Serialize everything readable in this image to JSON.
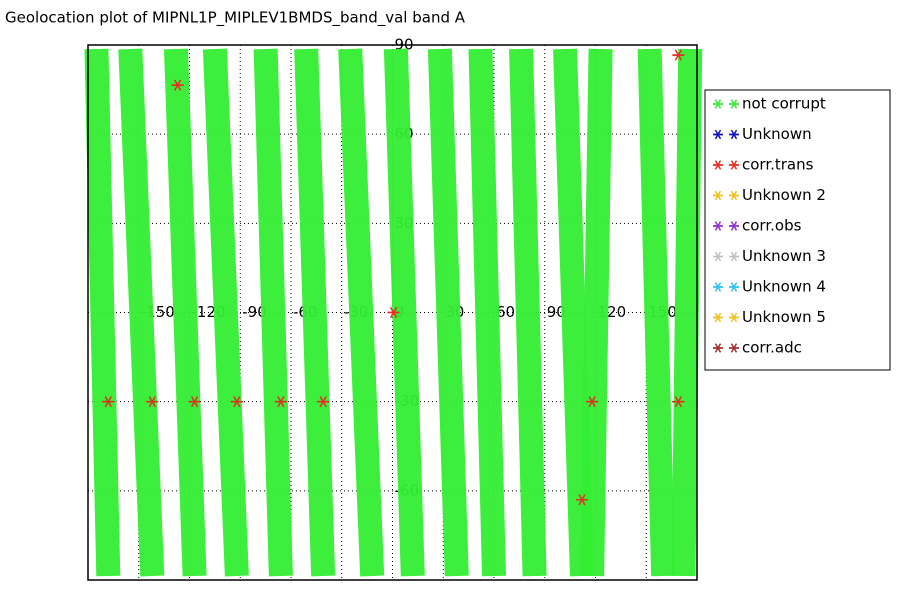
{
  "chart_data": {
    "type": "geolocation",
    "title": "Geolocation plot of MIPNL1P_MIPLEV1BMDS_band_val band A",
    "xlim": [
      -180,
      180
    ],
    "ylim": [
      -90,
      90
    ],
    "xticks": [
      -150,
      -120,
      -90,
      -60,
      -30,
      0,
      30,
      60,
      90,
      120,
      150
    ],
    "yticks": [
      -60,
      -30,
      0,
      30,
      60,
      90
    ],
    "grid": true,
    "series": [
      {
        "name": "not corrupt",
        "color": "#33ee33",
        "tracks": [
          [
            -175,
            -168
          ],
          [
            -155,
            -142
          ],
          [
            -128,
            -117
          ],
          [
            -105,
            -92
          ],
          [
            -75,
            -66
          ],
          [
            -51,
            -41
          ],
          [
            -25,
            -12
          ],
          [
            2,
            12
          ],
          [
            28,
            38
          ],
          [
            52,
            60
          ],
          [
            76,
            84
          ],
          [
            102,
            112
          ],
          [
            123,
            118
          ],
          [
            152,
            160
          ],
          [
            176,
            172
          ]
        ]
      },
      {
        "name": "Unknown",
        "color": "#1010c0",
        "lon": [],
        "lat": []
      },
      {
        "name": "corr.trans",
        "color": "#e03020",
        "lon": [
          -168,
          -142,
          -117,
          -92,
          -66,
          -41,
          118,
          169,
          -127,
          0.6,
          169,
          112
        ],
        "lat": [
          -30,
          -30,
          -30,
          -30,
          -30,
          -30,
          -30,
          -30,
          76.5,
          0,
          86.6,
          -63
        ]
      },
      {
        "name": "Unknown 2",
        "color": "#f0c020",
        "lon": [],
        "lat": []
      },
      {
        "name": "corr.obs",
        "color": "#9030d0",
        "lon": [],
        "lat": []
      },
      {
        "name": "Unknown 3",
        "color": "#c0c0c0",
        "lon": [],
        "lat": []
      },
      {
        "name": "Unknown 4",
        "color": "#30c0f0",
        "lon": [],
        "lat": []
      },
      {
        "name": "Unknown 5",
        "color": "#f0c020",
        "lon": [],
        "lat": []
      },
      {
        "name": "corr.adc",
        "color": "#a03030",
        "lon": [],
        "lat": []
      }
    ]
  }
}
